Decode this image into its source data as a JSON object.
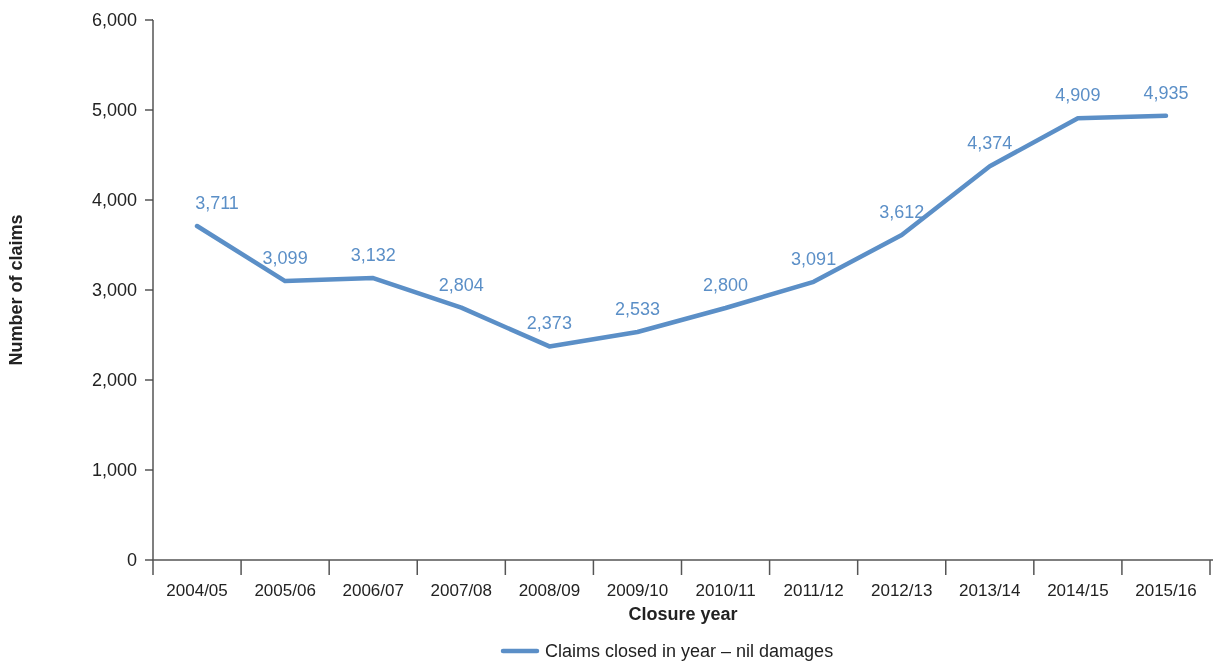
{
  "chart_data": {
    "type": "line",
    "xlabel": "Closure year",
    "ylabel": "Number of claims",
    "categories": [
      "2004/05",
      "2005/06",
      "2006/07",
      "2007/08",
      "2008/09",
      "2009/10",
      "2010/11",
      "2011/12",
      "2012/13",
      "2013/14",
      "2014/15",
      "2015/16"
    ],
    "series": [
      {
        "name": "Claims closed in year – nil damages",
        "color": "#5b8fc7",
        "values": [
          3711,
          3099,
          3132,
          2804,
          2373,
          2533,
          2800,
          3091,
          3612,
          4374,
          4909,
          4935
        ],
        "value_labels": [
          "3,711",
          "3,099",
          "3,132",
          "2,804",
          "2,373",
          "2,533",
          "2,800",
          "3,091",
          "3,612",
          "4,374",
          "4,909",
          "4,935"
        ]
      }
    ],
    "ylim": [
      0,
      6000
    ],
    "yticks": [
      {
        "value": 0,
        "label": "0"
      },
      {
        "value": 1000,
        "label": "1,000"
      },
      {
        "value": 2000,
        "label": "2,000"
      },
      {
        "value": 3000,
        "label": "3,000"
      },
      {
        "value": 4000,
        "label": "4,000"
      },
      {
        "value": 5000,
        "label": "5,000"
      },
      {
        "value": 6000,
        "label": "6,000"
      }
    ],
    "legend": "bottom",
    "grid": false,
    "marker": "none",
    "line_style": "solid"
  }
}
